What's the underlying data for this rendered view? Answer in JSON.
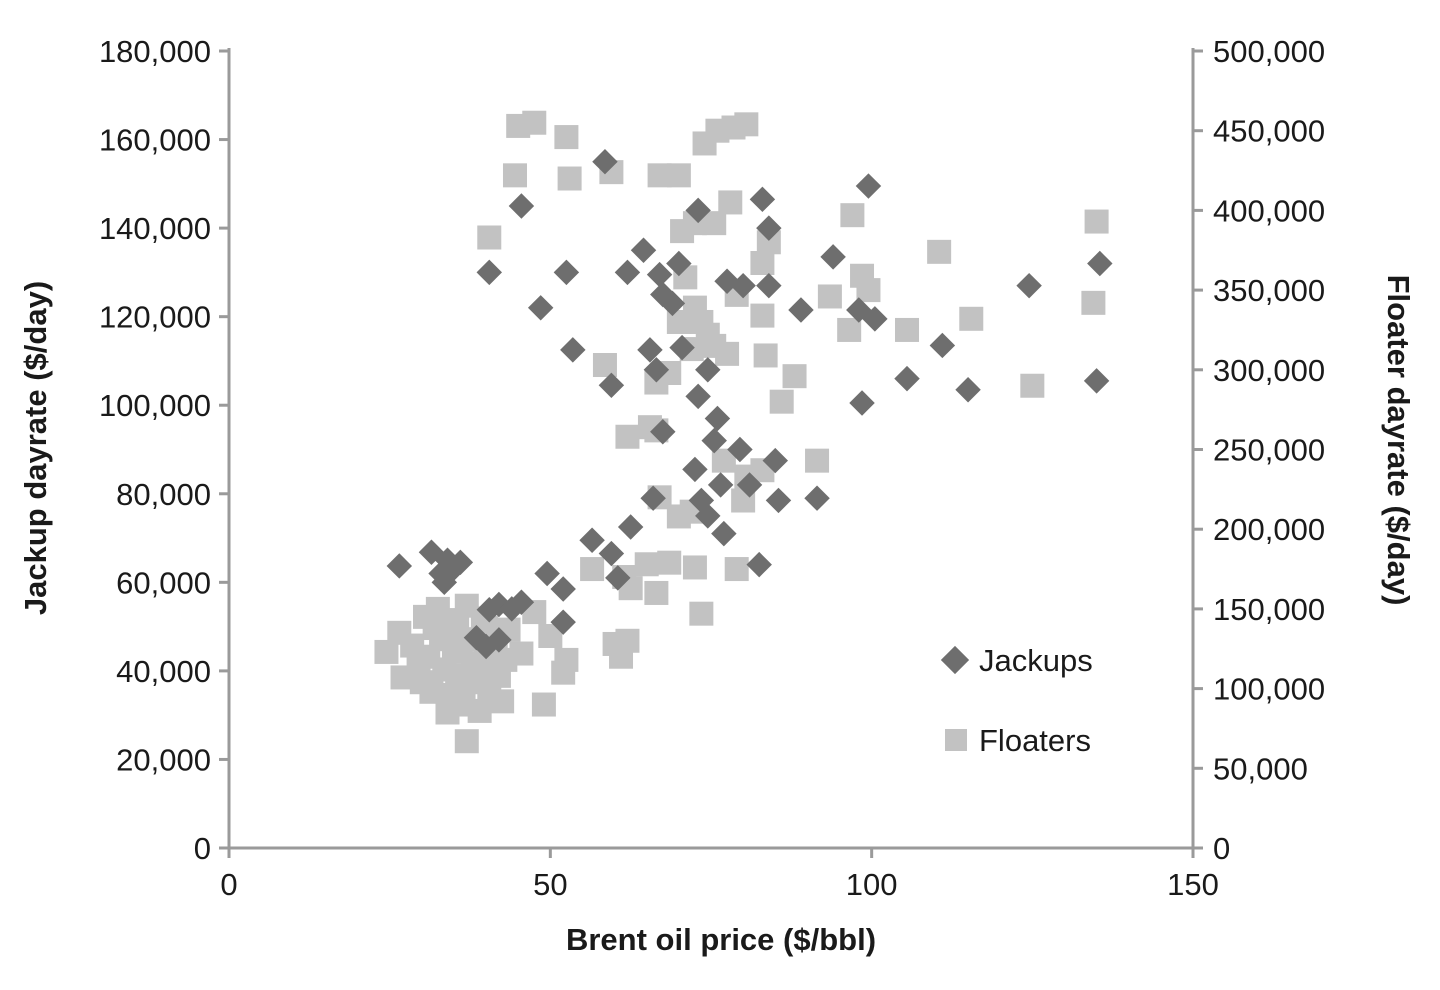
{
  "chart_data": {
    "type": "scatter",
    "xlabel": "Brent oil price ($/bbl)",
    "ylabel": "Jackup dayrate ($/day)",
    "y2label": "Floater dayrate ($/day)",
    "xlim": [
      0,
      150
    ],
    "ylim": [
      0,
      180000
    ],
    "y2lim": [
      0,
      500000
    ],
    "x_ticks": [
      "0",
      "50",
      "100",
      "150"
    ],
    "y_ticks": [
      "0",
      "20,000",
      "40,000",
      "60,000",
      "80,000",
      "100,000",
      "120,000",
      "140,000",
      "160,000",
      "180,000"
    ],
    "y2_ticks": [
      "0",
      "50,000",
      "100,000",
      "150,000",
      "200,000",
      "250,000",
      "300,000",
      "350,000",
      "400,000",
      "450,000",
      "500,000"
    ],
    "grid": false,
    "legend_position": "bottom-right",
    "series": [
      {
        "name": "Jackups",
        "marker": "diamond",
        "color": "#6e6e6e",
        "axis": "left",
        "points": [
          [
            26.5,
            63700
          ],
          [
            31.5,
            66800
          ],
          [
            33,
            62000
          ],
          [
            34,
            65000
          ],
          [
            35,
            63200
          ],
          [
            36,
            64500
          ],
          [
            33.5,
            60000
          ],
          [
            40.5,
            53800
          ],
          [
            42,
            55000
          ],
          [
            44,
            54000
          ],
          [
            45.5,
            55500
          ],
          [
            38.5,
            47500
          ],
          [
            40,
            45500
          ],
          [
            42,
            47000
          ],
          [
            49.5,
            62000
          ],
          [
            52,
            58500
          ],
          [
            52,
            51000
          ],
          [
            56.5,
            69500
          ],
          [
            59.5,
            66500
          ],
          [
            60.5,
            61000
          ],
          [
            62.5,
            72500
          ],
          [
            66,
            79000
          ],
          [
            67.5,
            94000
          ],
          [
            72.5,
            85500
          ],
          [
            73.5,
            78500
          ],
          [
            74.5,
            75000
          ],
          [
            75.5,
            92000
          ],
          [
            76,
            97000
          ],
          [
            76.5,
            82000
          ],
          [
            77,
            71000
          ],
          [
            79.5,
            90000
          ],
          [
            82.5,
            64000
          ],
          [
            85.5,
            78500
          ],
          [
            85,
            87500
          ],
          [
            91.5,
            79000
          ],
          [
            81,
            82000
          ],
          [
            45.5,
            145000
          ],
          [
            58.5,
            155000
          ],
          [
            73,
            144000
          ],
          [
            83,
            146500
          ],
          [
            84,
            140000
          ],
          [
            99.5,
            149500
          ],
          [
            40.5,
            130000
          ],
          [
            48.5,
            122000
          ],
          [
            52.5,
            130000
          ],
          [
            53.5,
            112500
          ],
          [
            59.5,
            104500
          ],
          [
            62,
            130000
          ],
          [
            64.5,
            135000
          ],
          [
            65.5,
            112500
          ],
          [
            66.5,
            108000
          ],
          [
            67,
            129500
          ],
          [
            67.5,
            125000
          ],
          [
            69,
            123000
          ],
          [
            70,
            132000
          ],
          [
            70.5,
            113000
          ],
          [
            73,
            102000
          ],
          [
            74.5,
            108000
          ],
          [
            77.5,
            128000
          ],
          [
            80,
            127000
          ],
          [
            84,
            127000
          ],
          [
            89,
            121500
          ],
          [
            94,
            133500
          ],
          [
            98,
            121500
          ],
          [
            98.5,
            100500
          ],
          [
            100.5,
            119500
          ],
          [
            105.5,
            106000
          ],
          [
            111,
            113500
          ],
          [
            115,
            103500
          ],
          [
            124.5,
            127000
          ],
          [
            135,
            105500
          ],
          [
            135.5,
            132000
          ]
        ]
      },
      {
        "name": "Floaters",
        "marker": "square",
        "color": "#c2c2c2",
        "axis": "right",
        "points": [
          [
            45,
            453000
          ],
          [
            47.5,
            455000
          ],
          [
            52.5,
            446000
          ],
          [
            59.5,
            424000
          ],
          [
            44.5,
            422000
          ],
          [
            53,
            420000
          ],
          [
            67,
            422000
          ],
          [
            70,
            422000
          ],
          [
            74,
            442000
          ],
          [
            76,
            450000
          ],
          [
            78.5,
            452000
          ],
          [
            80.5,
            454000
          ],
          [
            78,
            405000
          ],
          [
            40.5,
            383000
          ],
          [
            70.5,
            387000
          ],
          [
            72.5,
            392000
          ],
          [
            75.5,
            392000
          ],
          [
            83,
            367000
          ],
          [
            84,
            380000
          ],
          [
            97,
            397000
          ],
          [
            98.5,
            359000
          ],
          [
            99.5,
            350000
          ],
          [
            110.5,
            374000
          ],
          [
            135,
            393000
          ],
          [
            134.5,
            342000
          ],
          [
            93.5,
            346000
          ],
          [
            96.5,
            325000
          ],
          [
            105.5,
            325000
          ],
          [
            115.5,
            332000
          ],
          [
            125,
            290000
          ],
          [
            71,
            358000
          ],
          [
            72.5,
            339000
          ],
          [
            73.5,
            330000
          ],
          [
            74.5,
            322000
          ],
          [
            75.5,
            315000
          ],
          [
            77.5,
            310000
          ],
          [
            70,
            330000
          ],
          [
            72,
            313000
          ],
          [
            79,
            347000
          ],
          [
            83,
            334000
          ],
          [
            83.5,
            309000
          ],
          [
            86,
            280000
          ],
          [
            88,
            296000
          ],
          [
            58.5,
            303000
          ],
          [
            66.5,
            292000
          ],
          [
            68.5,
            298000
          ],
          [
            62,
            258000
          ],
          [
            65.5,
            264000
          ],
          [
            66.5,
            262000
          ],
          [
            77,
            243000
          ],
          [
            80.5,
            233000
          ],
          [
            83,
            237000
          ],
          [
            91.5,
            243000
          ],
          [
            80,
            218000
          ],
          [
            67,
            220000
          ],
          [
            70,
            208000
          ],
          [
            72,
            211000
          ],
          [
            56.5,
            175000
          ],
          [
            61.5,
            170000
          ],
          [
            62.5,
            163000
          ],
          [
            65,
            178000
          ],
          [
            66.5,
            160000
          ],
          [
            68.5,
            179000
          ],
          [
            72.5,
            176000
          ],
          [
            79,
            175000
          ],
          [
            73.5,
            147000
          ],
          [
            60,
            128000
          ],
          [
            61,
            120000
          ],
          [
            62,
            130000
          ],
          [
            43.5,
            137000
          ],
          [
            45.5,
            122000
          ],
          [
            47.5,
            148000
          ],
          [
            50,
            133000
          ],
          [
            52.5,
            118000
          ],
          [
            52,
            110000
          ],
          [
            49,
            90000
          ],
          [
            37,
            67000
          ],
          [
            24.5,
            123000
          ],
          [
            26.5,
            135000
          ],
          [
            27,
            107000
          ],
          [
            28.5,
            127000
          ],
          [
            29.5,
            112000
          ],
          [
            30,
            104000
          ],
          [
            31,
            120000
          ],
          [
            31.5,
            98000
          ],
          [
            32,
            138000
          ],
          [
            32.5,
            150000
          ],
          [
            33,
            131000
          ],
          [
            33.5,
            112000
          ],
          [
            34,
            143000
          ],
          [
            34.5,
            96000
          ],
          [
            35,
            123000
          ],
          [
            35.5,
            140000
          ],
          [
            36,
            108000
          ],
          [
            36.5,
            90000
          ],
          [
            37,
            152000
          ],
          [
            37.5,
            131000
          ],
          [
            38,
            116000
          ],
          [
            38.5,
            104000
          ],
          [
            39,
            86000
          ],
          [
            39.5,
            144000
          ],
          [
            40,
            125000
          ],
          [
            40.5,
            97000
          ],
          [
            41,
            112000
          ],
          [
            41.5,
            133000
          ],
          [
            42,
            108000
          ],
          [
            42.5,
            92000
          ],
          [
            43,
            118000
          ],
          [
            34,
            85000
          ],
          [
            35.5,
            99000
          ],
          [
            30.5,
            145000
          ],
          [
            36,
            128000
          ],
          [
            40,
            138000
          ]
        ]
      }
    ]
  }
}
